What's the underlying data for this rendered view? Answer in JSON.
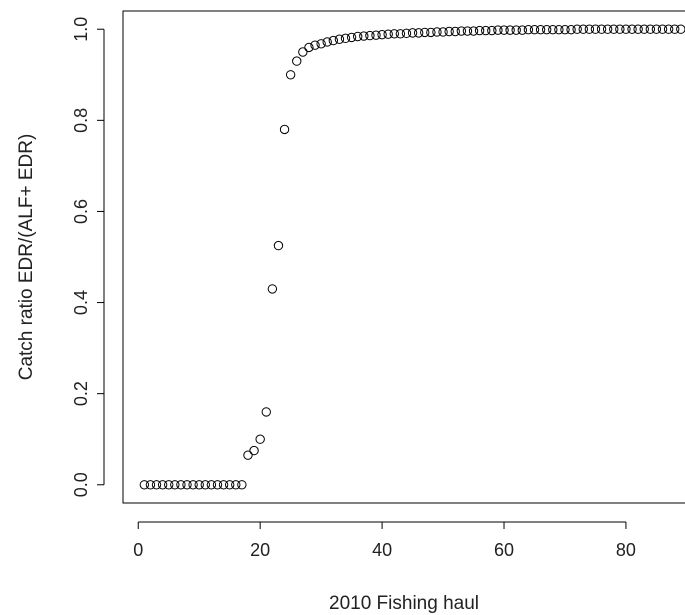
{
  "chart_data": {
    "type": "scatter",
    "title": "",
    "xlabel": "2010 Fishing haul",
    "ylabel": "Catch ratio EDR/(ALF+ EDR)",
    "xlim": [
      -2.5,
      91
    ],
    "ylim": [
      -0.04,
      1.04
    ],
    "xticks": [
      0,
      20,
      40,
      60,
      80
    ],
    "xtick_labels": [
      "0",
      "20",
      "40",
      "60",
      "80"
    ],
    "yticks": [
      0.0,
      0.2,
      0.4,
      0.6,
      0.8,
      1.0
    ],
    "ytick_labels": [
      "0.0",
      "0.2",
      "0.4",
      "0.6",
      "0.8",
      "1.0"
    ],
    "grid": false,
    "marker": "open-circle",
    "colors": {
      "marker": "#000000",
      "axis": "#000000"
    },
    "series": [
      {
        "x": [
          1,
          2,
          3,
          4,
          5,
          6,
          7,
          8,
          9,
          10,
          11,
          12,
          13,
          14,
          15,
          16,
          17,
          18,
          19,
          20,
          21,
          22,
          23,
          24,
          25,
          26,
          27,
          28,
          29,
          30,
          31,
          32,
          33,
          34,
          35,
          36,
          37,
          38,
          39,
          40,
          41,
          42,
          43,
          44,
          45,
          46,
          47,
          48,
          49,
          50,
          51,
          52,
          53,
          54,
          55,
          56,
          57,
          58,
          59,
          60,
          61,
          62,
          63,
          64,
          65,
          66,
          67,
          68,
          69,
          70,
          71,
          72,
          73,
          74,
          75,
          76,
          77,
          78,
          79,
          80,
          81,
          82,
          83,
          84,
          85,
          86,
          87,
          88,
          89
        ],
        "y": [
          0,
          0,
          0,
          0,
          0,
          0,
          0,
          0,
          0,
          0,
          0,
          0,
          0,
          0,
          0,
          0,
          0,
          0.065,
          0.075,
          0.1,
          0.16,
          0.43,
          0.525,
          0.78,
          0.9,
          0.93,
          0.95,
          0.96,
          0.965,
          0.968,
          0.972,
          0.975,
          0.978,
          0.98,
          0.982,
          0.984,
          0.985,
          0.986,
          0.987,
          0.988,
          0.989,
          0.99,
          0.99,
          0.991,
          0.992,
          0.992,
          0.993,
          0.993,
          0.994,
          0.994,
          0.995,
          0.995,
          0.996,
          0.996,
          0.996,
          0.997,
          0.997,
          0.997,
          0.998,
          0.998,
          0.998,
          0.998,
          0.998,
          0.999,
          0.999,
          0.999,
          0.999,
          0.999,
          0.999,
          0.999,
          0.999,
          1,
          1,
          1,
          1,
          1,
          1,
          1,
          1,
          1,
          1,
          1,
          1,
          1,
          1,
          1,
          1,
          1,
          1
        ]
      }
    ]
  }
}
